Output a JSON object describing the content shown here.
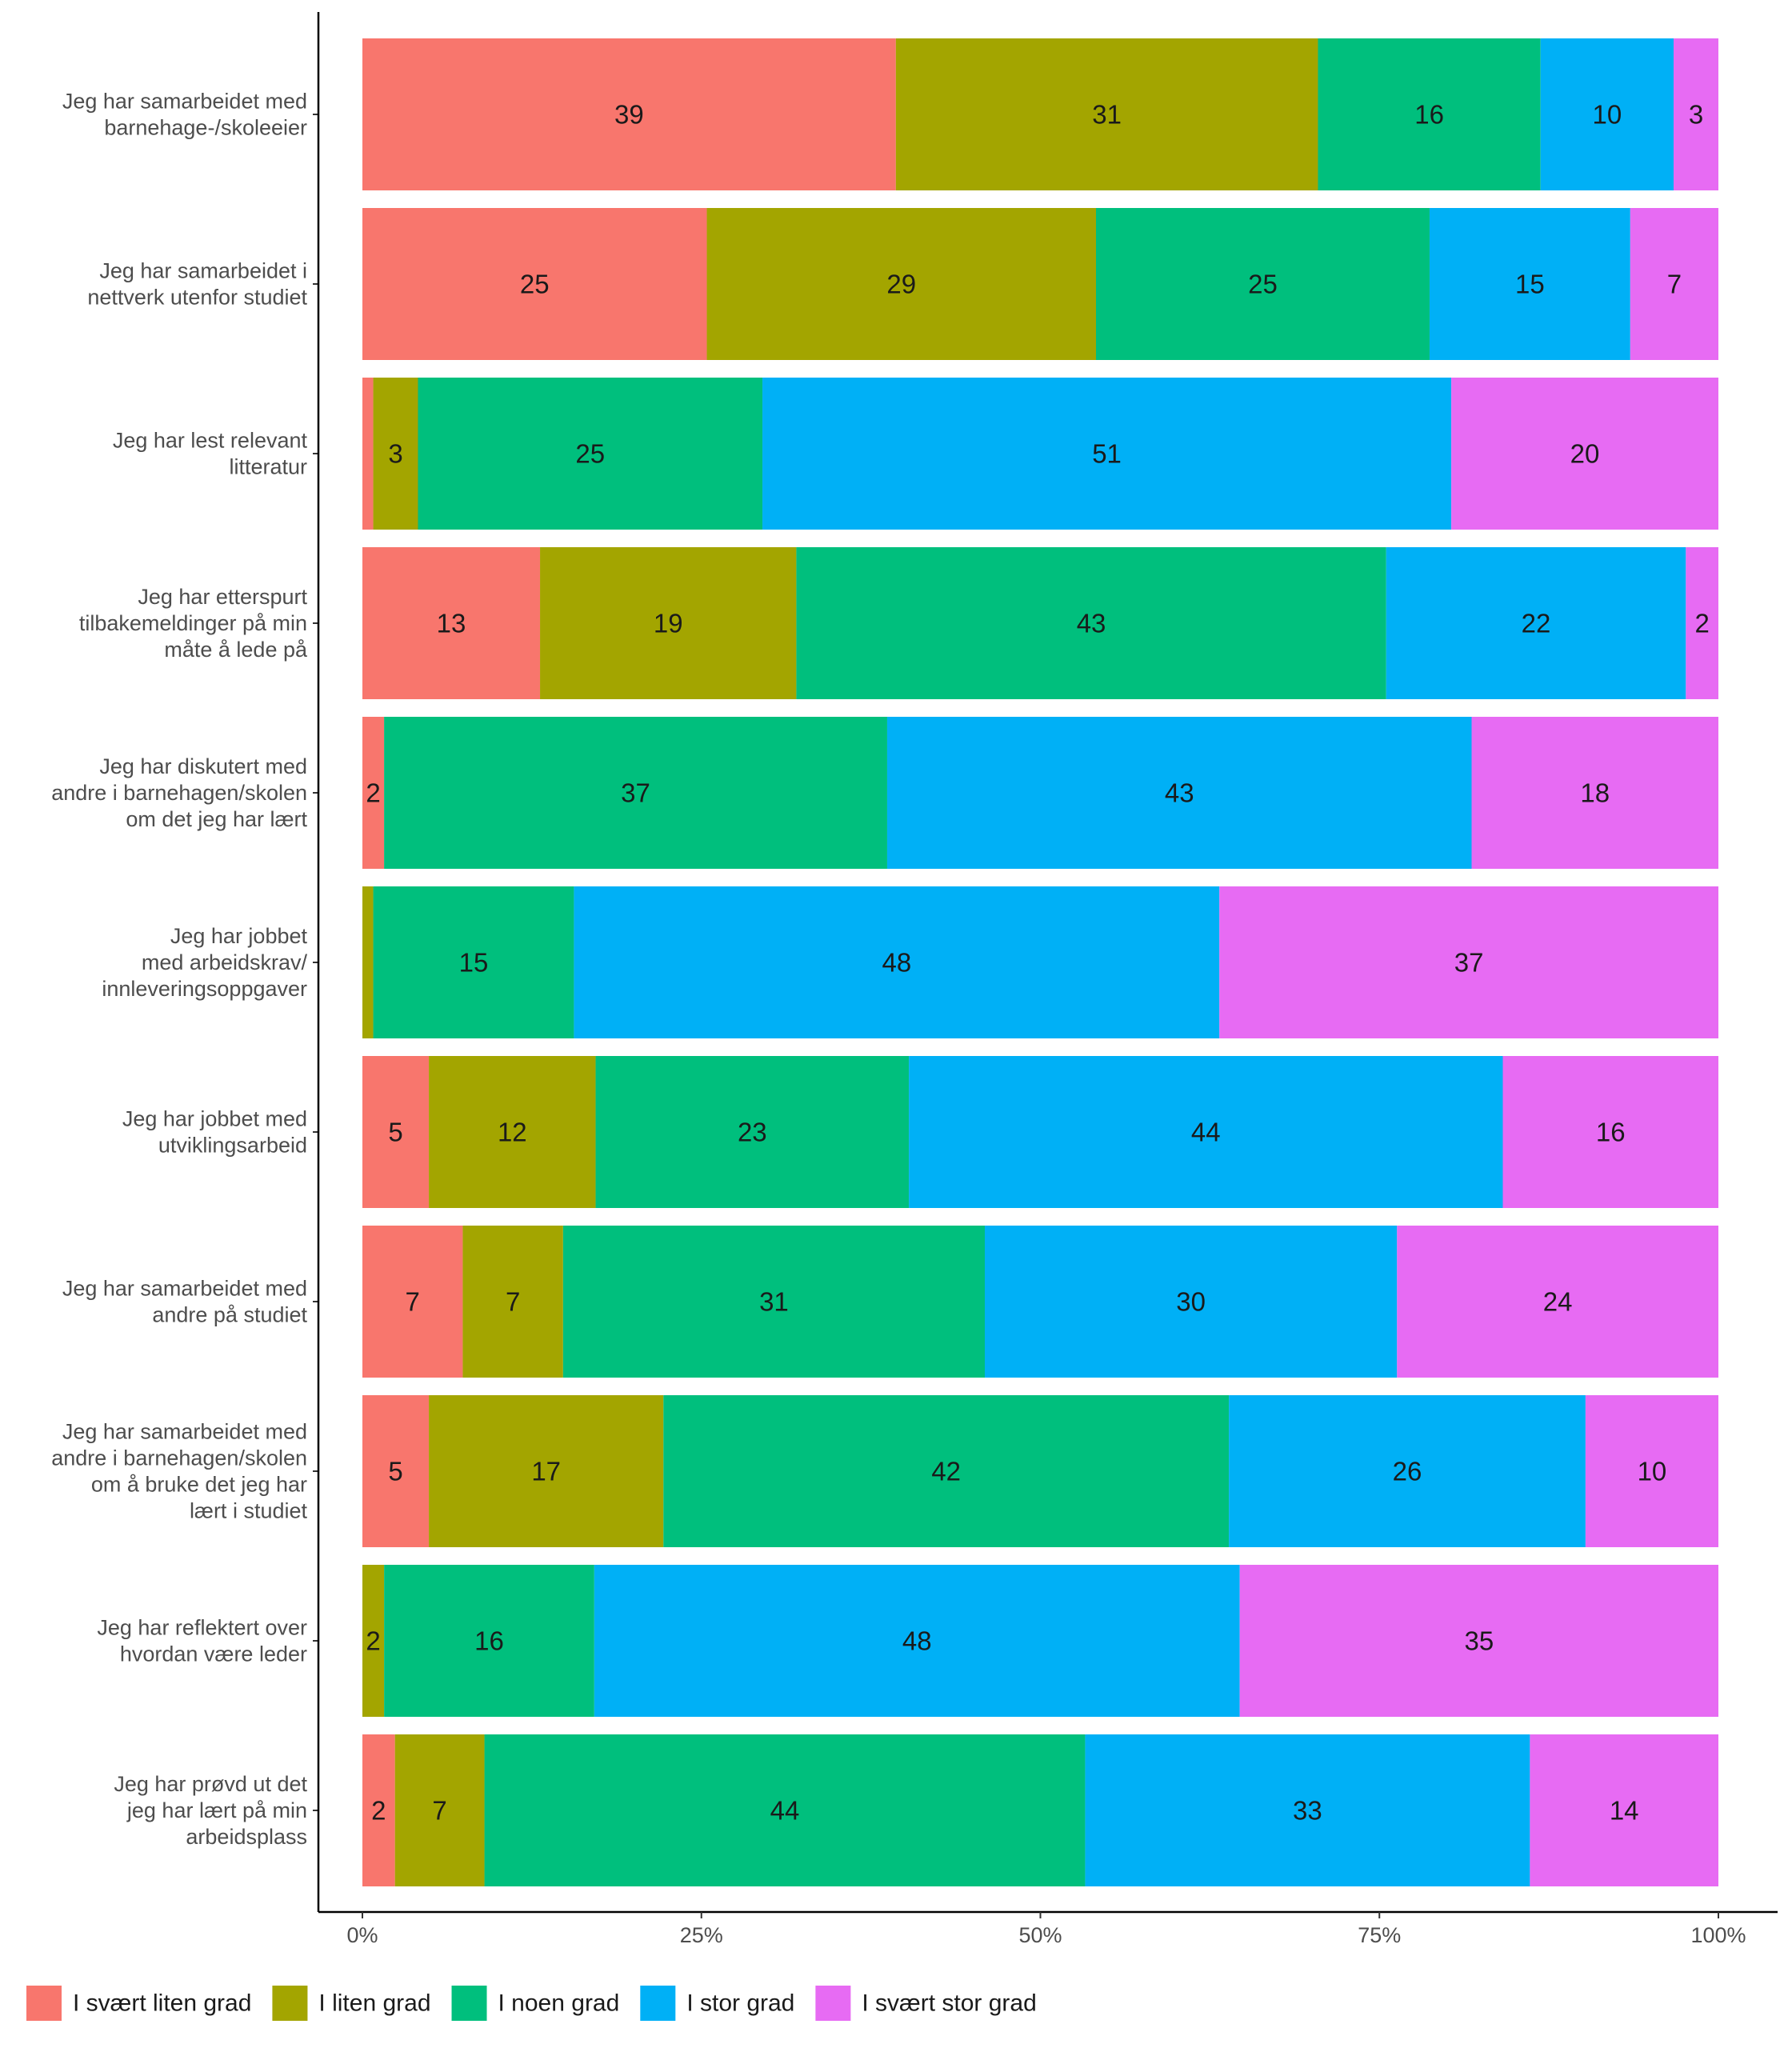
{
  "chart_data": {
    "type": "bar",
    "orientation": "horizontal",
    "stacked": true,
    "percent_scale": true,
    "title": "",
    "xlabel": "",
    "ylabel": "",
    "xlim": [
      0,
      100
    ],
    "x_ticks": [
      "0%",
      "25%",
      "50%",
      "75%",
      "100%"
    ],
    "x_tick_values": [
      0,
      25,
      50,
      75,
      100
    ],
    "grid": false,
    "legend_position": "bottom-left",
    "categories": [
      "Jeg har samarbeidet med\nbarnehage-/skoleeier",
      "Jeg har samarbeidet i\nnettverk utenfor studiet",
      "Jeg har lest relevant\nlitteratur",
      "Jeg har etterspurt\ntilbakemeldinger på min\nmåte å lede på",
      "Jeg har diskutert med\nandre i barnehagen/skolen\nom det jeg har lært",
      "Jeg har jobbet\nmed arbeidskrav/\ninnleveringsoppgaver",
      "Jeg har jobbet med\nutviklingsarbeid",
      "Jeg har samarbeidet med\nandre på studiet",
      "Jeg har samarbeidet med\nandre i barnehagen/skolen\nom å bruke det jeg har\nlært i studiet",
      "Jeg har reflektert over\nhvordan være leder",
      "Jeg har prøvd ut det\njeg har lært på min\narbeidsplass"
    ],
    "series": [
      {
        "name": "I svært liten grad",
        "color": "#F8766D",
        "values": [
          39.3,
          25.4,
          0.8,
          13.1,
          1.6,
          0,
          4.9,
          7.4,
          4.9,
          0,
          2.4
        ],
        "labels": [
          "39",
          "25",
          "",
          "13",
          "2",
          "",
          "5",
          "7",
          "5",
          "",
          "2"
        ]
      },
      {
        "name": "I liten grad",
        "color": "#A3A500",
        "values": [
          31.1,
          28.7,
          3.3,
          18.9,
          0,
          0.8,
          12.3,
          7.4,
          17.3,
          1.6,
          6.6
        ],
        "labels": [
          "31",
          "29",
          "3",
          "19",
          "",
          "",
          "12",
          "7",
          "17",
          "2",
          "7"
        ]
      },
      {
        "name": "I noen grad",
        "color": "#00BF7D",
        "values": [
          16.4,
          24.6,
          25.4,
          43.5,
          37.1,
          14.8,
          23.1,
          31.1,
          41.7,
          15.5,
          44.3
        ],
        "labels": [
          "16",
          "25",
          "25",
          "43",
          "37",
          "15",
          "23",
          "31",
          "42",
          "16",
          "44"
        ]
      },
      {
        "name": "I stor grad",
        "color": "#00B0F6",
        "values": [
          9.8,
          14.8,
          50.8,
          22.1,
          43.1,
          47.6,
          43.8,
          30.4,
          26.3,
          47.6,
          32.8
        ],
        "labels": [
          "10",
          "15",
          "51",
          "22",
          "43",
          "48",
          "44",
          "30",
          "26",
          "48",
          "33"
        ]
      },
      {
        "name": "I svært stor grad",
        "color": "#E76BF3",
        "values": [
          3.3,
          6.5,
          19.7,
          2.4,
          18.2,
          36.8,
          15.9,
          23.7,
          9.8,
          35.3,
          13.9
        ],
        "labels": [
          "3",
          "7",
          "20",
          "2",
          "18",
          "37",
          "16",
          "24",
          "10",
          "35",
          "14"
        ]
      }
    ]
  }
}
